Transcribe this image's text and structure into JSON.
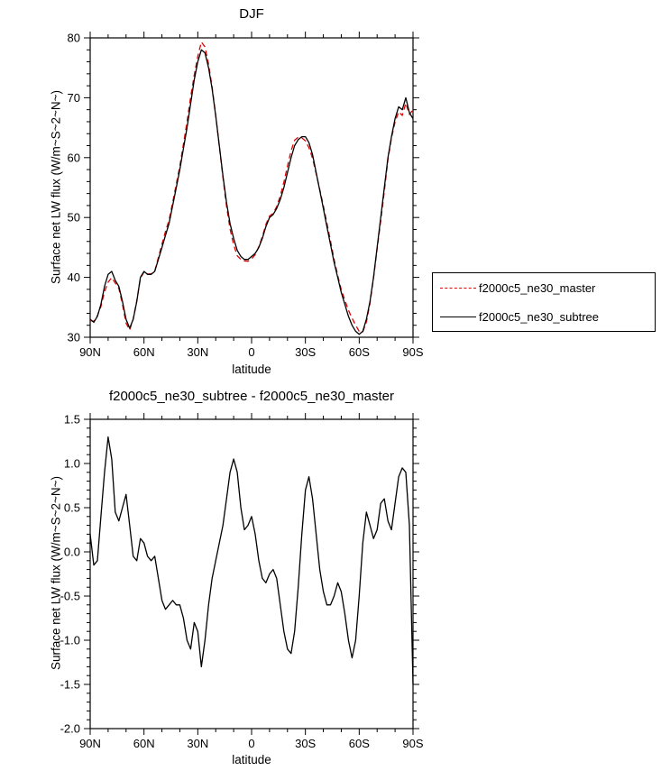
{
  "page": {
    "background": "#ffffff"
  },
  "chart_data": [
    {
      "type": "line",
      "title": "DJF",
      "xlabel": "latitude",
      "ylabel": "Surface net LW flux (W/m~S~2~N~)",
      "xlim": [
        90,
        -90
      ],
      "ylim": [
        30,
        80
      ],
      "grid": false,
      "legend_position": "right-outside",
      "xticks": {
        "values": [
          90,
          60,
          30,
          0,
          -30,
          -60,
          -90
        ],
        "labels": [
          "90N",
          "60N",
          "30N",
          "0",
          "30S",
          "60S",
          "90S"
        ],
        "minor_step": 10
      },
      "yticks": {
        "values": [
          30,
          40,
          50,
          60,
          70,
          80
        ],
        "labels": [
          "30",
          "40",
          "50",
          "60",
          "70",
          "80"
        ],
        "minor_step": 2
      },
      "x": [
        90,
        88,
        86,
        84,
        82,
        80,
        78,
        76,
        74,
        72,
        70,
        68,
        66,
        64,
        62,
        60,
        58,
        56,
        54,
        52,
        50,
        48,
        46,
        44,
        42,
        40,
        38,
        36,
        34,
        32,
        30,
        28,
        26,
        24,
        22,
        20,
        18,
        16,
        14,
        12,
        10,
        8,
        6,
        4,
        2,
        0,
        -2,
        -4,
        -6,
        -8,
        -10,
        -12,
        -14,
        -16,
        -18,
        -20,
        -22,
        -24,
        -26,
        -28,
        -30,
        -32,
        -34,
        -36,
        -38,
        -40,
        -42,
        -44,
        -46,
        -48,
        -50,
        -52,
        -54,
        -56,
        -58,
        -60,
        -62,
        -64,
        -66,
        -68,
        -70,
        -72,
        -74,
        -76,
        -78,
        -80,
        -82,
        -84,
        -86,
        -88,
        -90
      ],
      "series": [
        {
          "name": "f2000c5_ne30_master",
          "color": "#e00000",
          "dash": "6,4",
          "values": [
            32.8,
            32.65,
            33.6,
            35.1,
            37.6,
            39.2,
            39.95,
            39.05,
            38.15,
            35.5,
            32.35,
            31.2,
            33.05,
            36.1,
            39.85,
            40.9,
            40.55,
            40.6,
            41.05,
            43.3,
            45.55,
            47.65,
            49.6,
            52.55,
            55.6,
            58.6,
            62.25,
            66.0,
            70.1,
            73.8,
            76.9,
            79.3,
            78.5,
            75.6,
            71.8,
            67.1,
            61.9,
            56.7,
            51.9,
            48.1,
            45.45,
            43.6,
            43.0,
            42.75,
            42.7,
            43.1,
            43.8,
            45.1,
            46.8,
            48.85,
            50.25,
            50.7,
            51.8,
            53.6,
            55.9,
            58.6,
            61.15,
            62.9,
            63.4,
            63.3,
            62.8,
            61.65,
            59.9,
            57.3,
            54.7,
            51.95,
            49.1,
            46.1,
            43.0,
            40.35,
            37.95,
            36.2,
            34.5,
            33.2,
            32.0,
            31.0,
            30.9,
            32.55,
            35.7,
            39.85,
            44.75,
            49.45,
            54.4,
            59.65,
            63.25,
            65.95,
            67.65,
            67.05,
            69.1,
            67.2,
            68.0
          ]
        },
        {
          "name": "f2000c5_ne30_subtree",
          "color": "#000000",
          "dash": "",
          "values": [
            33.0,
            32.5,
            33.5,
            35.5,
            38.5,
            40.5,
            41.0,
            39.5,
            38.5,
            36.0,
            33.0,
            31.5,
            33.0,
            36.0,
            40.0,
            41.0,
            40.5,
            40.5,
            41.0,
            43.0,
            45.0,
            47.0,
            49.0,
            52.0,
            55.0,
            58.0,
            61.5,
            65.0,
            69.0,
            73.0,
            76.0,
            78.0,
            77.5,
            75.0,
            71.5,
            67.0,
            62.0,
            57.0,
            52.5,
            49.0,
            46.5,
            44.5,
            43.5,
            43.0,
            43.0,
            43.5,
            44.0,
            45.0,
            46.5,
            48.5,
            50.0,
            50.5,
            51.5,
            53.0,
            55.0,
            57.5,
            60.0,
            62.0,
            63.0,
            63.5,
            63.5,
            62.5,
            60.5,
            57.5,
            54.5,
            51.5,
            48.5,
            45.5,
            42.5,
            40.0,
            37.5,
            35.5,
            33.5,
            32.0,
            31.0,
            30.5,
            31.0,
            33.0,
            36.0,
            40.0,
            45.0,
            50.0,
            55.0,
            60.0,
            63.5,
            66.5,
            68.5,
            68.0,
            70.0,
            67.5,
            66.5
          ]
        }
      ]
    },
    {
      "type": "line",
      "title": "f2000c5_ne30_subtree - f2000c5_ne30_master",
      "xlabel": "latitude",
      "ylabel": "Surface net LW flux (W/m~S~2~N~)",
      "xlim": [
        90,
        -90
      ],
      "ylim": [
        -2.0,
        1.5
      ],
      "grid": false,
      "xticks": {
        "values": [
          90,
          60,
          30,
          0,
          -30,
          -60,
          -90
        ],
        "labels": [
          "90N",
          "60N",
          "30N",
          "0",
          "30S",
          "60S",
          "90S"
        ],
        "minor_step": 10
      },
      "yticks": {
        "values": [
          -2.0,
          -1.5,
          -1.0,
          -0.5,
          0.0,
          0.5,
          1.0,
          1.5
        ],
        "labels": [
          "-2.0",
          "-1.5",
          "-1.0",
          "-0.5",
          "0.0",
          "0.5",
          "1.0",
          "1.5"
        ],
        "minor_step": 0.1
      },
      "x": [
        90,
        88,
        86,
        84,
        82,
        80,
        78,
        76,
        74,
        72,
        70,
        68,
        66,
        64,
        62,
        60,
        58,
        56,
        54,
        52,
        50,
        48,
        46,
        44,
        42,
        40,
        38,
        36,
        34,
        32,
        30,
        28,
        26,
        24,
        22,
        20,
        18,
        16,
        14,
        12,
        10,
        8,
        6,
        4,
        2,
        0,
        -2,
        -4,
        -6,
        -8,
        -10,
        -12,
        -14,
        -16,
        -18,
        -20,
        -22,
        -24,
        -26,
        -28,
        -30,
        -32,
        -34,
        -36,
        -38,
        -40,
        -42,
        -44,
        -46,
        -48,
        -50,
        -52,
        -54,
        -56,
        -58,
        -60,
        -62,
        -64,
        -66,
        -68,
        -70,
        -72,
        -74,
        -76,
        -78,
        -80,
        -82,
        -84,
        -86,
        -88,
        -90
      ],
      "series": [
        {
          "name": "f2000c5_ne30_subtree - f2000c5_ne30_master",
          "color": "#000000",
          "dash": "",
          "values": [
            0.2,
            -0.15,
            -0.1,
            0.4,
            0.9,
            1.3,
            1.05,
            0.45,
            0.35,
            0.5,
            0.65,
            0.3,
            -0.05,
            -0.1,
            0.15,
            0.1,
            -0.05,
            -0.1,
            -0.05,
            -0.3,
            -0.55,
            -0.65,
            -0.6,
            -0.55,
            -0.6,
            -0.6,
            -0.75,
            -1.0,
            -1.1,
            -0.8,
            -0.9,
            -1.3,
            -1.0,
            -0.6,
            -0.3,
            -0.1,
            0.1,
            0.3,
            0.6,
            0.9,
            1.05,
            0.9,
            0.5,
            0.25,
            0.3,
            0.4,
            0.2,
            -0.1,
            -0.3,
            -0.35,
            -0.25,
            -0.2,
            -0.3,
            -0.6,
            -0.9,
            -1.1,
            -1.15,
            -0.9,
            -0.4,
            0.2,
            0.7,
            0.85,
            0.6,
            0.2,
            -0.2,
            -0.45,
            -0.6,
            -0.6,
            -0.5,
            -0.35,
            -0.45,
            -0.7,
            -1.0,
            -1.2,
            -1.0,
            -0.5,
            0.1,
            0.45,
            0.3,
            0.15,
            0.25,
            0.55,
            0.6,
            0.35,
            0.25,
            0.55,
            0.85,
            0.95,
            0.9,
            0.3,
            -1.5
          ]
        }
      ]
    }
  ]
}
